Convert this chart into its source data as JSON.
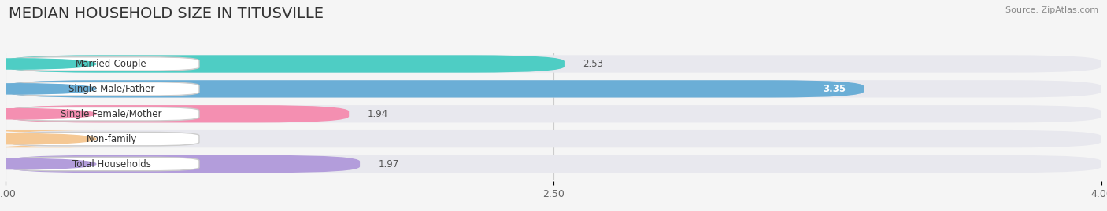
{
  "title": "MEDIAN HOUSEHOLD SIZE IN TITUSVILLE",
  "source": "Source: ZipAtlas.com",
  "categories": [
    "Married-Couple",
    "Single Male/Father",
    "Single Female/Mother",
    "Non-family",
    "Total Households"
  ],
  "values": [
    2.53,
    3.35,
    1.94,
    1.09,
    1.97
  ],
  "bar_colors": [
    "#4ecdc4",
    "#6baed6",
    "#f48fb1",
    "#f5c894",
    "#b39ddb"
  ],
  "bar_edge_colors": [
    "#26a69a",
    "#4090c8",
    "#e06880",
    "#e0a060",
    "#9575cd"
  ],
  "label_badge_colors": [
    "#4ecdc4",
    "#6baed6",
    "#f48fb1",
    "#f5c894",
    "#b39ddb"
  ],
  "xlim": [
    1.0,
    4.0
  ],
  "xticks": [
    1.0,
    2.5,
    4.0
  ],
  "background_color": "#f5f5f5",
  "bar_bg_color": "#e8e8ee",
  "title_fontsize": 14,
  "label_fontsize": 8.5,
  "value_fontsize": 8.5
}
